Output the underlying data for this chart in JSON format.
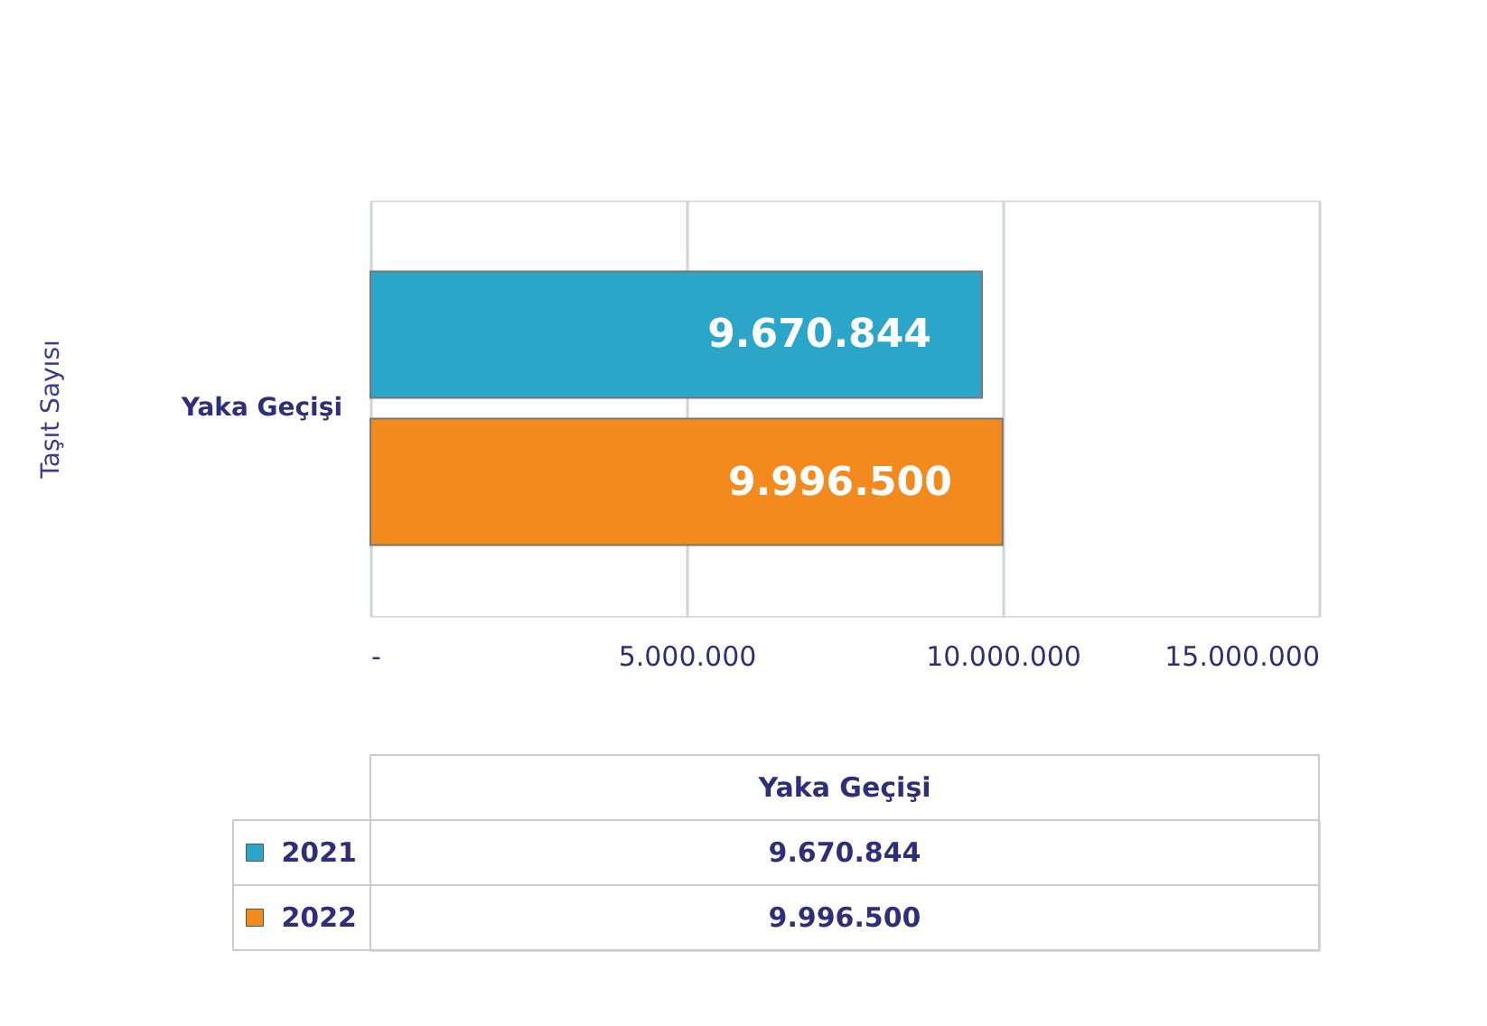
{
  "chart_data": {
    "type": "bar",
    "orientation": "horizontal",
    "ylabel": "Taşıt Sayısı",
    "categories": [
      "Yaka Geçişi"
    ],
    "series": [
      {
        "name": "2021",
        "color": "#2ba6c8",
        "values": [
          9670844
        ],
        "value_labels": [
          "9.670.844"
        ]
      },
      {
        "name": "2022",
        "color": "#f28a1e",
        "values": [
          9996500
        ],
        "value_labels": [
          "9.996.500"
        ]
      }
    ],
    "xlim": [
      0,
      15000000
    ],
    "xticks": [
      {
        "value": 0,
        "label": "-"
      },
      {
        "value": 5000000,
        "label": "5.000.000"
      },
      {
        "value": 10000000,
        "label": "10.000.000"
      },
      {
        "value": 15000000,
        "label": "15.000.000"
      }
    ],
    "grid": "x",
    "legend": "bottom"
  }
}
